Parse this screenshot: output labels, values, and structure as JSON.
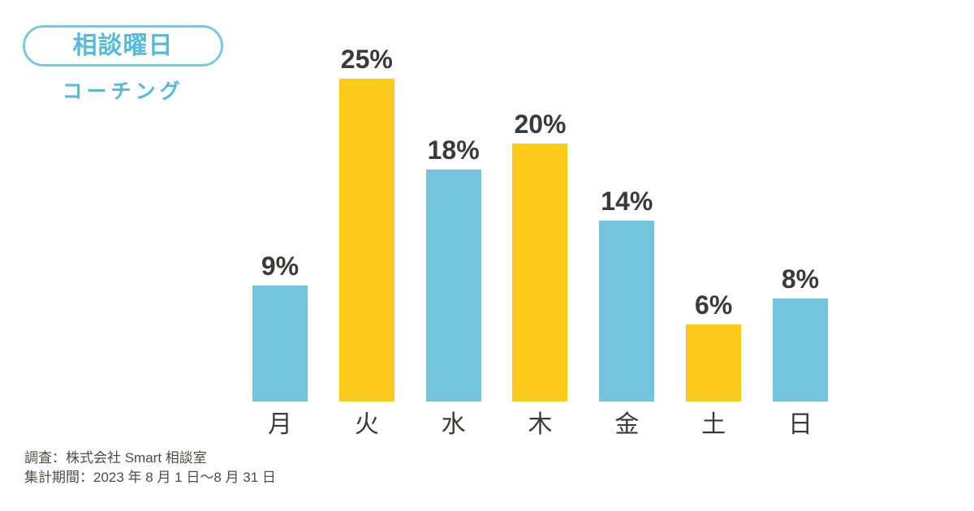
{
  "page": {
    "background": "#ffffff"
  },
  "header": {
    "badge_label": "相談曜日",
    "subtitle": "コーチング",
    "accent_text_color": "#58BAD9",
    "badge_border_color": "#7CC7E0"
  },
  "chart_data": {
    "type": "bar",
    "title": "相談曜日",
    "subtitle": "コーチング",
    "categories": [
      "月",
      "火",
      "水",
      "木",
      "金",
      "土",
      "日"
    ],
    "values": [
      9,
      25,
      18,
      20,
      14,
      6,
      8
    ],
    "value_labels": [
      "9%",
      "25%",
      "18%",
      "20%",
      "14%",
      "6%",
      "8%"
    ],
    "bar_colors": [
      "#74C3DC",
      "#FCC91D",
      "#74C3DC",
      "#FCC91D",
      "#74C3DC",
      "#FCC91D",
      "#74C3DC"
    ],
    "palette": {
      "blue": "#74C3DC",
      "yellow": "#FCC91D"
    },
    "value_unit": "%",
    "ylim": [
      0,
      25
    ],
    "xlabel": "",
    "ylabel": "",
    "grid": false,
    "legend": "none",
    "axis_lines": "none"
  },
  "footer": {
    "line1": "調査：株式会社 Smart 相談室",
    "line2": "集計期間：2023 年 8 月 1 日〜8 月 31 日"
  }
}
